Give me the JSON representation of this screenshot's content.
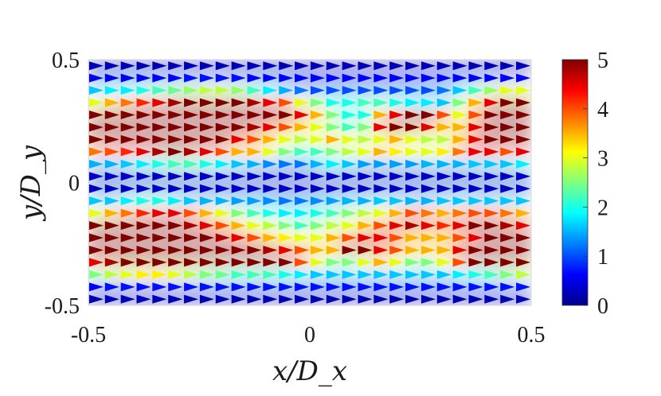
{
  "chart_data": {
    "type": "heatmap",
    "xlabel": "x/D_x",
    "ylabel": "y/D_y",
    "xlim": [
      -0.5,
      0.5
    ],
    "ylim": [
      -0.5,
      0.5
    ],
    "x_ticks": [
      "-0.5",
      "0",
      "0.5"
    ],
    "y_ticks": [
      "-0.5",
      "0",
      "0.5"
    ],
    "colorbar": {
      "range": [
        0,
        5
      ],
      "ticks": [
        "0",
        "1",
        "2",
        "3",
        "4",
        "5"
      ],
      "colormap": "jet"
    },
    "grid": false,
    "arrows": {
      "direction": "+x",
      "columns": 28,
      "rows": 20
    },
    "magnitude_rows": [
      {
        "y": 0.475,
        "values": [
          0.2,
          0.2,
          0.2,
          0.2,
          0.2,
          0.2,
          0.2,
          0.2,
          0.2,
          0.2,
          0.2,
          0.2,
          0.2,
          0.2,
          0.2,
          0.2,
          0.2,
          0.2,
          0.2,
          0.2,
          0.2,
          0.2,
          0.2,
          0.2,
          0.2,
          0.2,
          0.2,
          0.2
        ]
      },
      {
        "y": 0.425,
        "values": [
          0.5,
          0.5,
          0.5,
          0.6,
          0.6,
          0.6,
          0.7,
          0.7,
          0.7,
          0.7,
          0.6,
          0.6,
          0.6,
          0.6,
          0.6,
          0.6,
          0.6,
          0.6,
          0.6,
          0.6,
          0.6,
          0.6,
          0.6,
          0.6,
          0.6,
          0.6,
          0.6,
          0.6
        ]
      },
      {
        "y": 0.375,
        "values": [
          1.6,
          1.8,
          1.8,
          2.0,
          2.2,
          2.4,
          2.6,
          2.8,
          2.8,
          2.6,
          2.2,
          1.8,
          1.5,
          1.2,
          1.0,
          1.0,
          1.0,
          1.0,
          1.0,
          1.0,
          1.0,
          1.0,
          1.2,
          1.6,
          2.2,
          2.6,
          3.0,
          3.0
        ]
      },
      {
        "y": 0.325,
        "values": [
          3.0,
          3.5,
          3.8,
          4.2,
          4.5,
          4.8,
          5.0,
          5.0,
          5.0,
          5.0,
          4.8,
          4.5,
          4.0,
          3.0,
          2.5,
          2.0,
          2.0,
          2.2,
          2.2,
          2.0,
          1.8,
          1.8,
          1.6,
          2.5,
          3.5,
          4.5,
          5.0,
          5.0
        ]
      },
      {
        "y": 0.275,
        "values": [
          5.0,
          5.0,
          5.0,
          5.0,
          5.0,
          5.0,
          5.0,
          5.0,
          5.0,
          5.0,
          5.0,
          5.0,
          5.0,
          4.5,
          3.5,
          2.5,
          2.0,
          2.0,
          3.5,
          4.5,
          5.0,
          5.0,
          4.0,
          3.0,
          4.0,
          5.0,
          5.0,
          5.0
        ]
      },
      {
        "y": 0.225,
        "values": [
          5.0,
          5.0,
          5.0,
          5.0,
          5.0,
          5.0,
          5.0,
          5.0,
          5.0,
          5.0,
          4.8,
          4.5,
          4.0,
          3.5,
          3.0,
          2.5,
          2.2,
          2.5,
          4.5,
          5.0,
          5.0,
          4.5,
          3.5,
          3.5,
          4.5,
          5.0,
          5.0,
          5.0
        ]
      },
      {
        "y": 0.175,
        "values": [
          5.0,
          5.0,
          5.0,
          5.0,
          5.0,
          5.0,
          5.0,
          5.0,
          5.0,
          4.5,
          4.0,
          3.5,
          3.0,
          2.8,
          3.0,
          3.5,
          3.0,
          2.8,
          3.0,
          3.5,
          3.0,
          2.8,
          2.8,
          3.5,
          4.5,
          5.0,
          5.0,
          5.0
        ]
      },
      {
        "y": 0.125,
        "values": [
          3.8,
          4.0,
          4.2,
          4.5,
          4.8,
          5.0,
          4.8,
          4.5,
          4.0,
          3.5,
          3.5,
          3.0,
          2.5,
          2.2,
          2.2,
          2.5,
          2.8,
          3.0,
          3.5,
          3.2,
          3.0,
          3.0,
          3.2,
          3.8,
          4.5,
          4.5,
          4.0,
          4.5
        ]
      },
      {
        "y": 0.075,
        "values": [
          1.5,
          1.5,
          1.6,
          1.8,
          2.0,
          2.2,
          2.2,
          2.0,
          1.8,
          1.6,
          1.5,
          1.3,
          1.2,
          1.2,
          1.5,
          1.8,
          1.6,
          1.4,
          1.4,
          1.4,
          1.4,
          1.5,
          1.5,
          1.5,
          1.6,
          1.6,
          1.6,
          1.8
        ]
      },
      {
        "y": 0.025,
        "values": [
          0.3,
          0.3,
          0.3,
          0.3,
          0.3,
          0.3,
          0.3,
          0.3,
          0.3,
          0.3,
          0.3,
          0.3,
          0.3,
          0.3,
          0.3,
          0.3,
          0.3,
          0.3,
          0.3,
          0.3,
          0.3,
          0.3,
          0.3,
          0.3,
          0.3,
          0.3,
          0.3,
          0.3
        ]
      },
      {
        "y": -0.025,
        "values": [
          0.3,
          0.3,
          0.3,
          0.3,
          0.3,
          0.3,
          0.3,
          0.3,
          0.3,
          0.3,
          0.3,
          0.3,
          0.3,
          0.3,
          0.3,
          0.3,
          0.3,
          0.3,
          0.3,
          0.3,
          0.3,
          0.3,
          0.3,
          0.3,
          0.3,
          0.3,
          0.3,
          0.3
        ]
      },
      {
        "y": -0.075,
        "values": [
          1.6,
          1.6,
          1.8,
          2.0,
          2.0,
          1.8,
          1.6,
          1.5,
          1.5,
          1.4,
          1.4,
          1.3,
          1.2,
          1.2,
          1.3,
          1.4,
          1.5,
          1.5,
          1.6,
          1.6,
          1.5,
          1.5,
          1.6,
          1.6,
          1.6,
          1.6,
          1.6,
          1.6
        ]
      },
      {
        "y": -0.125,
        "values": [
          3.0,
          3.5,
          3.8,
          4.2,
          4.5,
          4.5,
          4.0,
          3.5,
          3.0,
          2.5,
          2.2,
          2.0,
          1.8,
          1.8,
          2.0,
          2.2,
          2.5,
          2.8,
          3.0,
          3.5,
          4.0,
          3.8,
          3.5,
          3.8,
          4.0,
          4.0,
          3.8,
          3.5
        ]
      },
      {
        "y": -0.175,
        "values": [
          5.0,
          5.0,
          5.0,
          5.0,
          5.0,
          5.0,
          4.8,
          4.5,
          4.0,
          3.5,
          3.0,
          2.8,
          2.5,
          2.2,
          2.5,
          2.8,
          3.0,
          3.5,
          4.0,
          4.5,
          4.8,
          4.5,
          4.2,
          4.5,
          5.0,
          5.0,
          4.8,
          4.5
        ]
      },
      {
        "y": -0.225,
        "values": [
          5.0,
          5.0,
          5.0,
          5.0,
          5.0,
          5.0,
          5.0,
          5.0,
          4.8,
          4.5,
          4.0,
          3.5,
          3.2,
          3.0,
          3.0,
          3.5,
          4.0,
          4.5,
          4.5,
          4.0,
          3.5,
          3.5,
          3.5,
          4.0,
          4.5,
          5.0,
          5.0,
          5.0
        ]
      },
      {
        "y": -0.275,
        "values": [
          5.0,
          5.0,
          5.0,
          5.0,
          5.0,
          5.0,
          5.0,
          5.0,
          5.0,
          5.0,
          5.0,
          4.8,
          4.5,
          4.0,
          3.5,
          3.5,
          5.0,
          5.0,
          4.5,
          4.0,
          3.5,
          3.5,
          3.5,
          4.5,
          5.0,
          5.0,
          5.0,
          5.0
        ]
      },
      {
        "y": -0.325,
        "values": [
          4.5,
          4.8,
          5.0,
          5.0,
          5.0,
          5.0,
          5.0,
          5.0,
          5.0,
          5.0,
          5.0,
          5.0,
          5.0,
          4.0,
          3.0,
          2.5,
          2.5,
          3.0,
          3.5,
          3.0,
          2.5,
          2.5,
          3.0,
          4.0,
          5.0,
          5.0,
          5.0,
          5.0
        ]
      },
      {
        "y": -0.375,
        "values": [
          2.5,
          2.8,
          3.0,
          3.2,
          3.2,
          3.0,
          2.8,
          2.5,
          2.4,
          2.2,
          2.2,
          2.2,
          2.0,
          1.8,
          1.6,
          1.6,
          1.6,
          1.6,
          1.6,
          1.6,
          1.6,
          1.6,
          1.6,
          1.8,
          2.0,
          2.2,
          2.5,
          2.8
        ]
      },
      {
        "y": -0.425,
        "values": [
          0.6,
          0.7,
          0.7,
          0.7,
          0.7,
          0.7,
          0.7,
          0.7,
          0.7,
          0.7,
          0.7,
          0.7,
          0.7,
          0.7,
          0.7,
          0.7,
          0.7,
          0.7,
          0.7,
          0.7,
          0.7,
          0.7,
          0.7,
          0.7,
          0.7,
          0.7,
          0.7,
          0.7
        ]
      },
      {
        "y": -0.475,
        "values": [
          0.2,
          0.2,
          0.2,
          0.2,
          0.2,
          0.2,
          0.2,
          0.2,
          0.2,
          0.2,
          0.2,
          0.2,
          0.2,
          0.2,
          0.2,
          0.2,
          0.2,
          0.2,
          0.2,
          0.2,
          0.2,
          0.2,
          0.2,
          0.2,
          0.2,
          0.2,
          0.2,
          0.2
        ]
      }
    ]
  }
}
